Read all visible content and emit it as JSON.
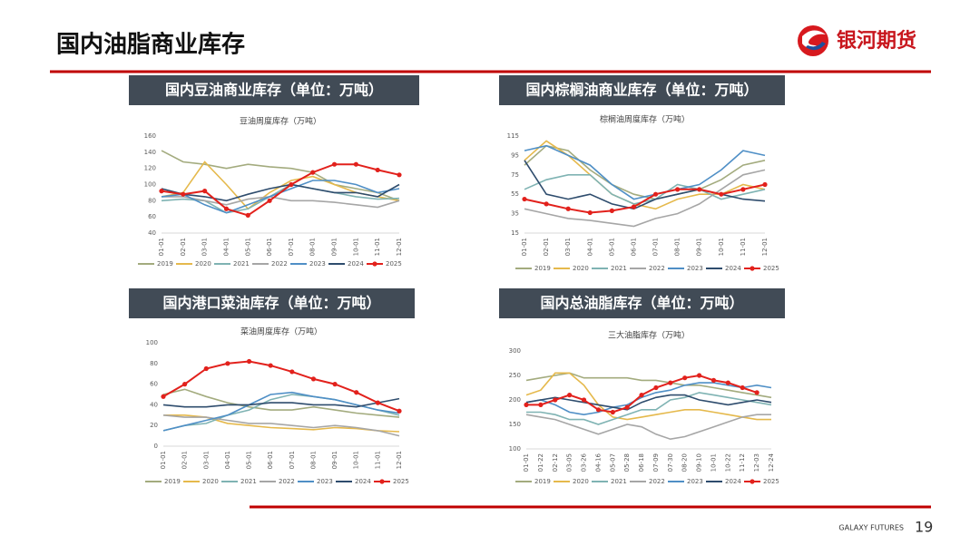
{
  "header": {
    "title": "国内油脂商业库存",
    "logo": "银河期货"
  },
  "footer": {
    "brand": "GALAXY FUTURES",
    "page": "19"
  },
  "chart_data": [
    {
      "type": "line",
      "heading": "国内豆油商业库存（单位：万吨）",
      "title": "豆油周度库存（万吨）",
      "categories": [
        "01-01",
        "02-01",
        "03-01",
        "04-01",
        "05-01",
        "06-01",
        "07-01",
        "08-01",
        "09-01",
        "10-01",
        "11-01",
        "12-01"
      ],
      "ylim": [
        40,
        160
      ],
      "yticks": [
        40,
        60,
        80,
        100,
        120,
        140,
        160
      ],
      "legend": "bottom",
      "series": [
        {
          "name": "2019",
          "color": "#a3ab7e",
          "values": [
            142,
            128,
            125,
            120,
            125,
            122,
            120,
            115,
            100,
            95,
            90,
            80
          ]
        },
        {
          "name": "2020",
          "color": "#e5b94c",
          "values": [
            85,
            90,
            128,
            100,
            70,
            90,
            105,
            110,
            100,
            90,
            85,
            80
          ]
        },
        {
          "name": "2021",
          "color": "#7fb3b3",
          "values": [
            80,
            82,
            80,
            65,
            70,
            85,
            100,
            95,
            90,
            85,
            82,
            83
          ]
        },
        {
          "name": "2022",
          "color": "#a6a6a6",
          "values": [
            85,
            85,
            80,
            75,
            82,
            85,
            80,
            80,
            78,
            75,
            72,
            80
          ]
        },
        {
          "name": "2023",
          "color": "#4f8fc6",
          "values": [
            85,
            88,
            75,
            65,
            75,
            85,
            95,
            105,
            105,
            100,
            90,
            95
          ]
        },
        {
          "name": "2024",
          "color": "#2e4c6d",
          "values": [
            95,
            88,
            85,
            80,
            88,
            95,
            100,
            95,
            90,
            90,
            85,
            100
          ]
        },
        {
          "name": "2025",
          "color": "#e2211c",
          "marker": true,
          "values": [
            92,
            88,
            92,
            70,
            62,
            80,
            100,
            115,
            125,
            125,
            118,
            112
          ]
        }
      ]
    },
    {
      "type": "line",
      "heading": "国内棕榈油商业库存（单位：万吨）",
      "title": "棕榈油周度库存（万吨）",
      "categories": [
        "01-01",
        "02-01",
        "03-01",
        "04-01",
        "05-01",
        "06-01",
        "07-01",
        "08-01",
        "09-01",
        "10-01",
        "11-01",
        "12-01"
      ],
      "ylim": [
        15,
        115
      ],
      "yticks": [
        15,
        35,
        55,
        75,
        95,
        115
      ],
      "legend": "bottom",
      "series": [
        {
          "name": "2019",
          "color": "#a3ab7e",
          "values": [
            85,
            105,
            100,
            80,
            65,
            55,
            50,
            55,
            60,
            70,
            85,
            90
          ]
        },
        {
          "name": "2020",
          "color": "#e5b94c",
          "values": [
            90,
            110,
            95,
            75,
            55,
            45,
            40,
            50,
            55,
            55,
            65,
            60
          ]
        },
        {
          "name": "2021",
          "color": "#7fb3b3",
          "values": [
            60,
            70,
            75,
            75,
            55,
            45,
            50,
            65,
            60,
            50,
            55,
            60
          ]
        },
        {
          "name": "2022",
          "color": "#a6a6a6",
          "values": [
            40,
            35,
            30,
            28,
            25,
            22,
            30,
            35,
            45,
            60,
            75,
            80
          ]
        },
        {
          "name": "2023",
          "color": "#4f8fc6",
          "values": [
            100,
            105,
            95,
            85,
            65,
            50,
            55,
            60,
            65,
            80,
            100,
            95
          ]
        },
        {
          "name": "2024",
          "color": "#2e4c6d",
          "values": [
            90,
            55,
            50,
            55,
            45,
            40,
            50,
            55,
            60,
            55,
            50,
            48
          ]
        },
        {
          "name": "2025",
          "color": "#e2211c",
          "marker": true,
          "values": [
            50,
            45,
            40,
            36,
            38,
            42,
            55,
            60,
            60,
            55,
            60,
            65
          ]
        }
      ]
    },
    {
      "type": "line",
      "heading": "国内港口菜油库存（单位：万吨）",
      "title": "菜油周度库存（万吨）",
      "categories": [
        "01-01",
        "02-01",
        "03-01",
        "04-01",
        "05-01",
        "06-01",
        "07-01",
        "08-01",
        "09-01",
        "10-01",
        "11-01",
        "12-01"
      ],
      "ylim": [
        0,
        100
      ],
      "yticks": [
        0,
        20,
        40,
        60,
        80,
        100
      ],
      "legend": "bottom",
      "series": [
        {
          "name": "2019",
          "color": "#a3ab7e",
          "values": [
            50,
            55,
            48,
            42,
            38,
            35,
            35,
            38,
            35,
            32,
            30,
            28
          ]
        },
        {
          "name": "2020",
          "color": "#e5b94c",
          "values": [
            30,
            30,
            28,
            22,
            20,
            18,
            17,
            16,
            18,
            17,
            15,
            14
          ]
        },
        {
          "name": "2021",
          "color": "#7fb3b3",
          "values": [
            15,
            20,
            22,
            30,
            35,
            45,
            50,
            48,
            45,
            40,
            35,
            30
          ]
        },
        {
          "name": "2022",
          "color": "#a6a6a6",
          "values": [
            30,
            28,
            28,
            25,
            22,
            22,
            20,
            18,
            20,
            18,
            15,
            10
          ]
        },
        {
          "name": "2023",
          "color": "#4f8fc6",
          "values": [
            15,
            20,
            25,
            30,
            40,
            50,
            52,
            48,
            45,
            40,
            35,
            32
          ]
        },
        {
          "name": "2024",
          "color": "#2e4c6d",
          "values": [
            40,
            38,
            38,
            40,
            40,
            42,
            42,
            40,
            40,
            38,
            42,
            46
          ]
        },
        {
          "name": "2025",
          "color": "#e2211c",
          "marker": true,
          "values": [
            48,
            60,
            75,
            80,
            82,
            78,
            72,
            65,
            60,
            52,
            42,
            34
          ]
        }
      ]
    },
    {
      "type": "line",
      "heading": "国内总油脂库存（单位：万吨）",
      "title": "三大油脂库存（万吨）",
      "categories": [
        "01-01",
        "01-22",
        "02-12",
        "03-05",
        "03-26",
        "04-16",
        "05-07",
        "05-28",
        "06-18",
        "07-09",
        "07-30",
        "08-20",
        "09-10",
        "10-01",
        "10-22",
        "11-12",
        "12-03",
        "12-24"
      ],
      "ylim": [
        100,
        300
      ],
      "yticks": [
        100,
        150,
        200,
        250,
        300
      ],
      "legend": "bottom",
      "series": [
        {
          "name": "2019",
          "color": "#a3ab7e",
          "values": [
            240,
            245,
            250,
            255,
            245,
            245,
            245,
            245,
            240,
            240,
            235,
            230,
            230,
            225,
            220,
            215,
            210,
            205
          ]
        },
        {
          "name": "2020",
          "color": "#e5b94c",
          "values": [
            210,
            220,
            255,
            255,
            230,
            190,
            165,
            160,
            165,
            170,
            175,
            180,
            180,
            175,
            170,
            165,
            160,
            160
          ]
        },
        {
          "name": "2021",
          "color": "#7fb3b3",
          "values": [
            175,
            175,
            170,
            160,
            160,
            150,
            160,
            170,
            180,
            180,
            200,
            205,
            215,
            210,
            205,
            200,
            195,
            190
          ]
        },
        {
          "name": "2022",
          "color": "#a6a6a6",
          "values": [
            170,
            165,
            160,
            150,
            140,
            130,
            140,
            150,
            145,
            130,
            120,
            125,
            135,
            145,
            155,
            165,
            170,
            170
          ]
        },
        {
          "name": "2023",
          "color": "#4f8fc6",
          "values": [
            195,
            200,
            190,
            175,
            170,
            175,
            185,
            190,
            205,
            215,
            220,
            230,
            235,
            235,
            230,
            225,
            230,
            225
          ]
        },
        {
          "name": "2024",
          "color": "#2e4c6d",
          "values": [
            195,
            200,
            205,
            200,
            195,
            190,
            185,
            180,
            195,
            205,
            210,
            210,
            200,
            195,
            190,
            195,
            200,
            195
          ]
        },
        {
          "name": "2025",
          "color": "#e2211c",
          "marker": true,
          "values": [
            190,
            190,
            200,
            210,
            200,
            180,
            175,
            185,
            210,
            225,
            235,
            245,
            250,
            240,
            235,
            225,
            215,
            null
          ]
        }
      ]
    }
  ]
}
